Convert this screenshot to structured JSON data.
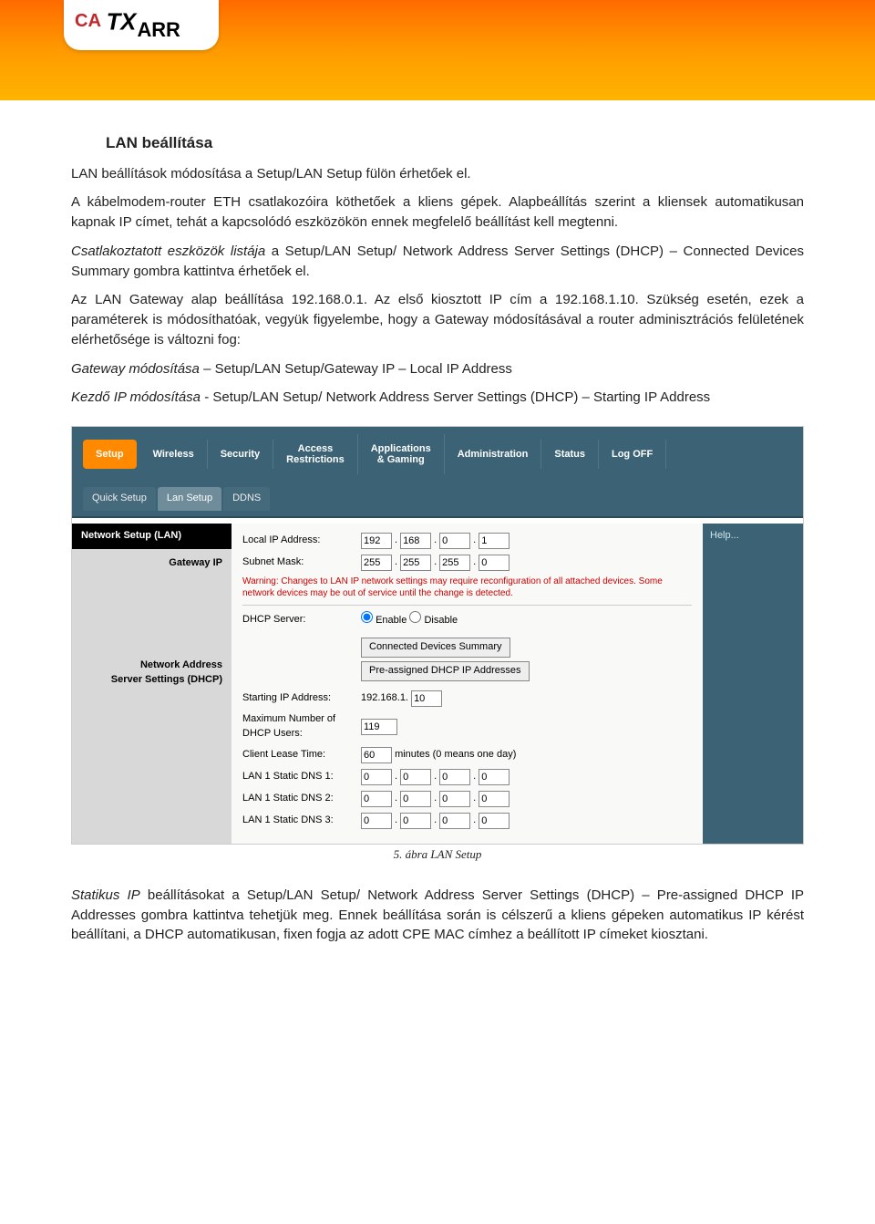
{
  "header": {
    "logo_text_1": "CA",
    "logo_text_2": "TX",
    "logo_text_3": "ARR",
    "gradient_top": "#ff6a00",
    "gradient_mid": "#ff9a00",
    "gradient_bot": "#ffb400"
  },
  "doc": {
    "title": "LAN beállítása",
    "p1": "LAN beállítások módosítása a Setup/LAN Setup fülön érhetőek el.",
    "p2": "A kábelmodem-router ETH csatlakozóira köthetőek a kliens gépek. Alapbeállítás szerint a kliensek automatikusan kapnak IP címet, tehát a kapcsolódó eszközökön ennek megfelelő beállítást kell megtenni.",
    "p3_em": "Csatlakoztatott eszközök listája",
    "p3_rest": " a Setup/LAN Setup/ Network Address Server Settings (DHCP) – Connected Devices Summary gombra kattintva érhetőek el.",
    "p4": "Az LAN Gateway alap beállítása 192.168.0.1. Az első kiosztott IP cím a 192.168.1.10. Szükség esetén, ezek a paraméterek is módosíthatóak, vegyük figyelembe, hogy a Gateway módosításával a router adminisztrációs felületének elérhetősége is változni fog:",
    "p5_em": "Gateway módosítása",
    "p5_rest": " – Setup/LAN Setup/Gateway IP – Local IP Address",
    "p6_em": "Kezdő IP módosítása",
    "p6_rest": " - Setup/LAN Setup/ Network Address Server Settings (DHCP) – Starting IP Address",
    "caption": "5. ábra LAN Setup",
    "p7_em": "Statikus IP",
    "p7_rest": " beállításokat a Setup/LAN Setup/ Network Address Server Settings (DHCP) – Pre-assigned DHCP IP Addresses gombra kattintva tehetjük meg. Ennek beállítása során is célszerű a kliens gépeken automatikus IP kérést beállítani, a DHCP automatikusan, fixen fogja az adott CPE MAC címhez a beállított IP címeket kiosztani."
  },
  "router": {
    "nav": [
      "Setup",
      "Wireless",
      "Security",
      "Access\nRestrictions",
      "Applications\n& Gaming",
      "Administration",
      "Status",
      "Log OFF"
    ],
    "subnav": [
      "Quick Setup",
      "Lan Setup",
      "DDNS"
    ],
    "section1_title": "Network Setup (LAN)",
    "section1_side": "Gateway IP",
    "local_ip_label": "Local IP Address:",
    "local_ip": [
      "192",
      "168",
      "0",
      "1"
    ],
    "subnet_label": "Subnet Mask:",
    "subnet": [
      "255",
      "255",
      "255",
      "0"
    ],
    "warning": "Warning: Changes to LAN IP network settings may require reconfiguration of all attached devices. Some network devices may be out of service until the change is detected.",
    "section2_side": "Network Address\nServer Settings (DHCP)",
    "dhcp_server_label": "DHCP Server:",
    "enable": "Enable",
    "disable": "Disable",
    "btn1": "Connected Devices Summary",
    "btn2": "Pre-assigned DHCP IP Addresses",
    "start_ip_label": "Starting IP Address:",
    "start_ip_prefix": "192.168.1.",
    "start_ip_last": "10",
    "max_users_label": "Maximum Number of\nDHCP Users:",
    "max_users": "119",
    "lease_label": "Client Lease Time:",
    "lease_val": "60",
    "lease_suffix": "minutes (0 means one day)",
    "dns1_label": "LAN 1 Static DNS 1:",
    "dns2_label": "LAN 1 Static DNS 2:",
    "dns3_label": "LAN 1 Static DNS 3:",
    "dns_oct": [
      "0",
      "0",
      "0",
      "0"
    ],
    "help": "Help...",
    "bg_color": "#3c6275",
    "active_tab_color": "#ff8a00",
    "warning_color": "#cc0000"
  }
}
